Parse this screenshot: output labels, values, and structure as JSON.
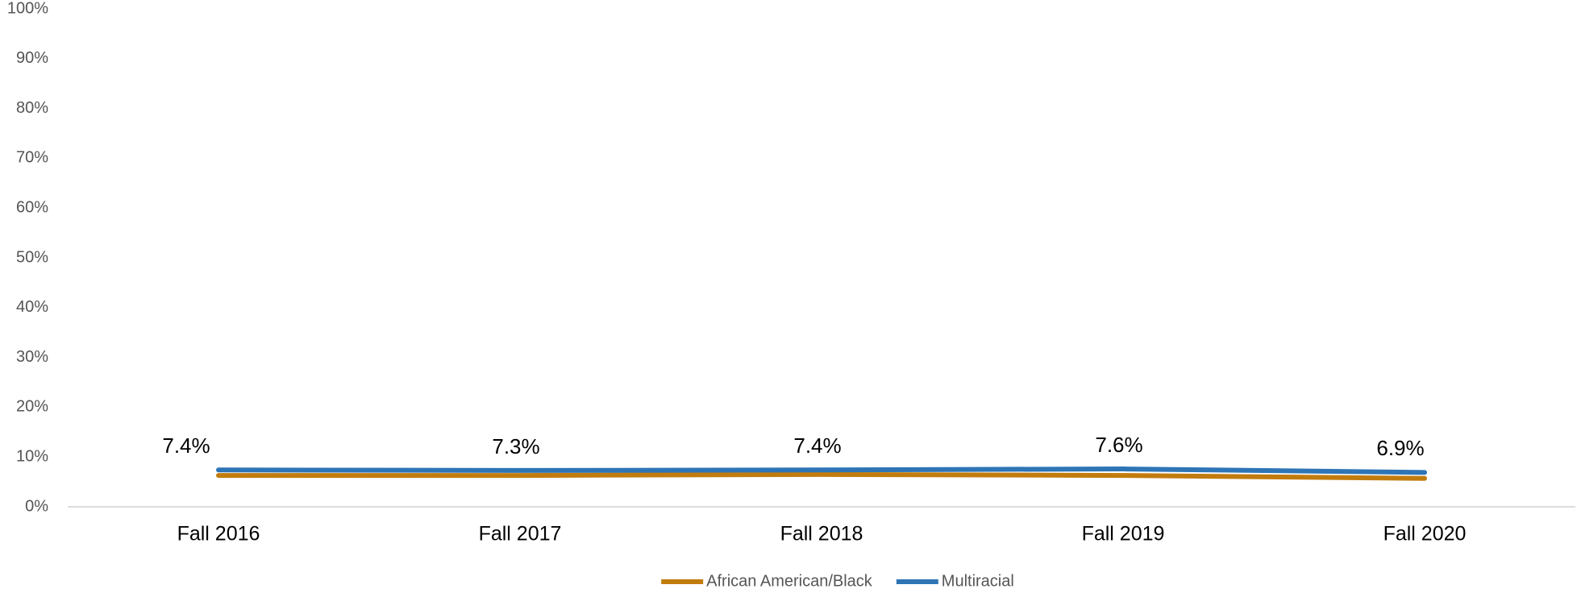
{
  "chart_data": {
    "type": "line",
    "categories": [
      "Fall 2016",
      "Fall 2017",
      "Fall 2018",
      "Fall 2019",
      "Fall 2020"
    ],
    "series": [
      {
        "name": "African American/Black",
        "color": "#c27c0e",
        "values": [
          6.3,
          6.3,
          6.5,
          6.3,
          5.7
        ]
      },
      {
        "name": "Multiracial",
        "color": "#2e75b6",
        "values": [
          7.4,
          7.3,
          7.4,
          7.6,
          6.9
        ],
        "value_labels": [
          "7.4%",
          "7.3%",
          "7.4%",
          "7.6%",
          "6.9%"
        ]
      }
    ],
    "ylim": [
      0,
      100
    ],
    "yticks": [
      {
        "value": 0,
        "label": "0%"
      },
      {
        "value": 10,
        "label": "10%"
      },
      {
        "value": 20,
        "label": "20%"
      },
      {
        "value": 30,
        "label": "30%"
      },
      {
        "value": 40,
        "label": "40%"
      },
      {
        "value": 50,
        "label": "50%"
      },
      {
        "value": 60,
        "label": "60%"
      },
      {
        "value": 70,
        "label": "70%"
      },
      {
        "value": 80,
        "label": "80%"
      },
      {
        "value": 90,
        "label": "90%"
      },
      {
        "value": 100,
        "label": "100%"
      }
    ],
    "legend": "bottom"
  }
}
